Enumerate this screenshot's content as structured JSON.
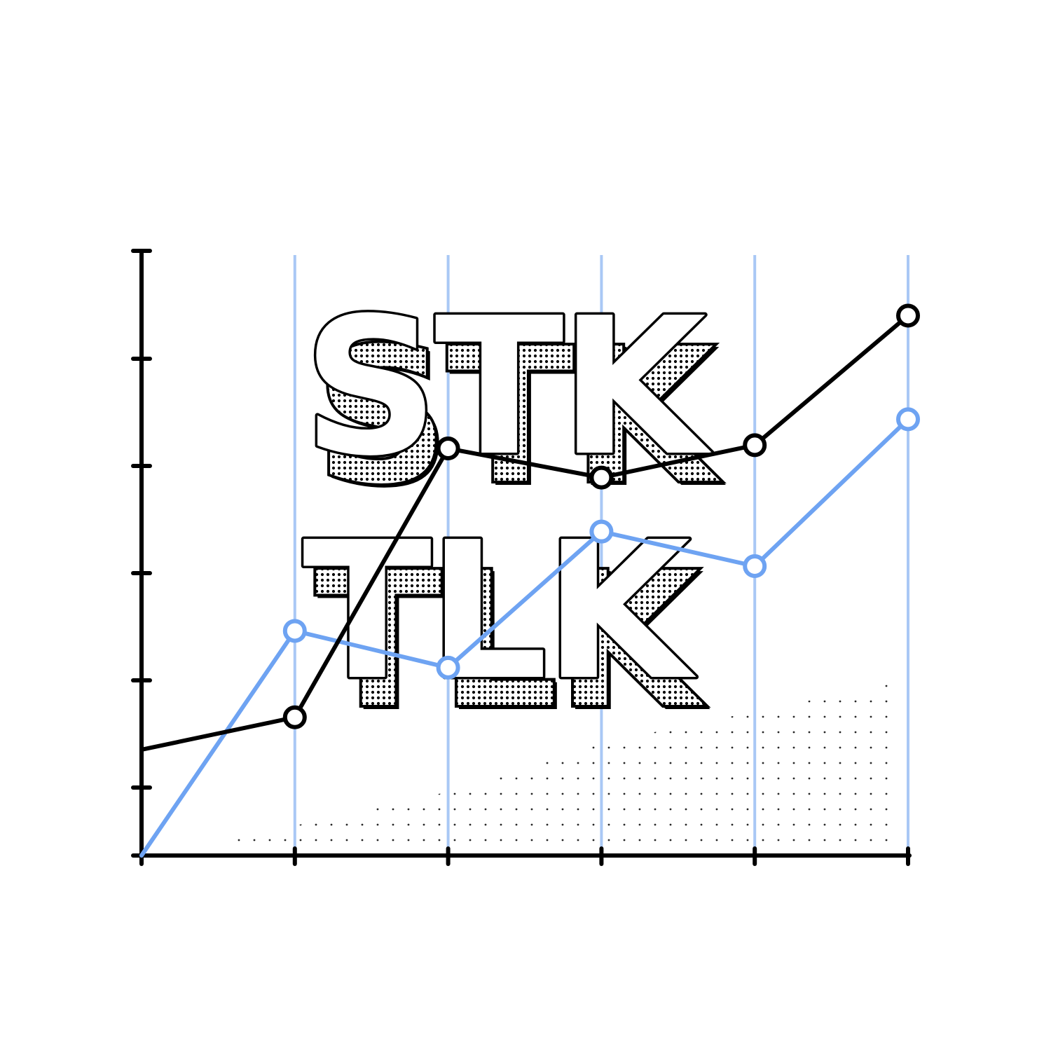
{
  "logo": {
    "line1": "STK",
    "line2": "TLK"
  },
  "colors": {
    "background": "#ffffff",
    "ink": "#000000",
    "accent": "#6ea3f2",
    "grid": "#a9c8f5"
  },
  "chart_data": {
    "type": "line",
    "x": [
      0,
      1,
      2,
      3,
      4,
      5
    ],
    "xlim": [
      0,
      5
    ],
    "ylim": [
      0,
      5.6
    ],
    "y_ticks": [
      0,
      1,
      2,
      3,
      4,
      5
    ],
    "grid": "vertical",
    "series": [
      {
        "color": "#000000",
        "values": [
          0.98,
          1.28,
          3.77,
          3.5,
          3.8,
          5.0
        ]
      },
      {
        "color": "#6ea3f2",
        "values": [
          0.0,
          2.08,
          1.74,
          3.0,
          2.68,
          4.04
        ]
      }
    ]
  }
}
